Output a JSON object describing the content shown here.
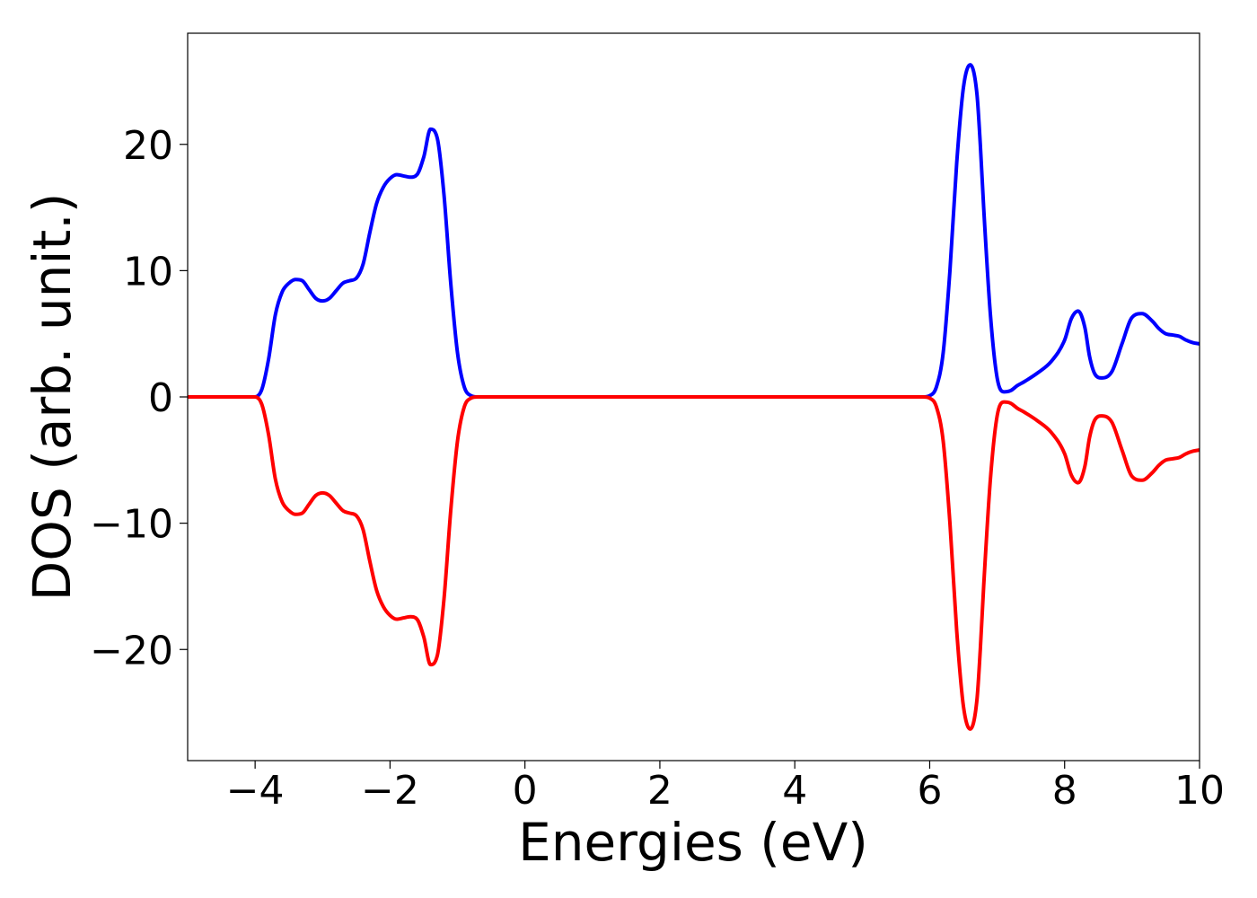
{
  "chart_data": {
    "type": "line",
    "xlabel": "Energies (eV)",
    "ylabel": "DOS (arb. unit.)",
    "xlim": [
      -5,
      10
    ],
    "ylim": [
      -28.8,
      28.8
    ],
    "xticks": [
      -4,
      -2,
      0,
      2,
      4,
      6,
      8,
      10
    ],
    "xtick_labels": [
      "−4",
      "−2",
      "0",
      "2",
      "4",
      "6",
      "8",
      "10"
    ],
    "yticks": [
      -20,
      -10,
      0,
      10,
      20
    ],
    "ytick_labels": [
      "−20",
      "−10",
      "0",
      "10",
      "20"
    ],
    "grid": false,
    "legend": "none",
    "series": [
      {
        "color": "#0000ff",
        "x": [
          -5.0,
          -4.0,
          -3.9,
          -3.8,
          -3.7,
          -3.6,
          -3.5,
          -3.4,
          -3.3,
          -3.2,
          -3.1,
          -3.0,
          -2.9,
          -2.8,
          -2.7,
          -2.6,
          -2.5,
          -2.4,
          -2.3,
          -2.2,
          -2.1,
          -2.0,
          -1.9,
          -1.8,
          -1.7,
          -1.6,
          -1.5,
          -1.4,
          -1.3,
          -1.2,
          -1.1,
          -1.0,
          -0.9,
          -0.8,
          -0.7,
          -0.6,
          -0.5,
          0.0,
          2.0,
          4.0,
          5.9,
          6.0,
          6.1,
          6.2,
          6.3,
          6.4,
          6.5,
          6.6,
          6.7,
          6.75,
          6.8,
          6.9,
          7.0,
          7.1,
          7.2,
          7.3,
          7.4,
          7.6,
          7.8,
          8.0,
          8.1,
          8.2,
          8.3,
          8.37,
          8.45,
          8.55,
          8.7,
          8.85,
          9.0,
          9.15,
          9.3,
          9.4,
          9.5,
          9.6,
          9.7,
          9.8,
          9.9,
          10.0
        ],
        "y": [
          0,
          0,
          0.6,
          3.0,
          6.5,
          8.3,
          9.0,
          9.3,
          9.2,
          8.5,
          7.8,
          7.6,
          7.8,
          8.4,
          9.0,
          9.2,
          9.4,
          10.5,
          13.0,
          15.3,
          16.6,
          17.3,
          17.6,
          17.5,
          17.4,
          17.6,
          19.0,
          21.2,
          20.5,
          16.0,
          9.0,
          3.5,
          0.8,
          0.1,
          0,
          0,
          0,
          0,
          0,
          0,
          0,
          0.1,
          0.8,
          3.5,
          10.0,
          18.5,
          24.5,
          26.3,
          24.0,
          20.0,
          15.0,
          6.5,
          1.5,
          0.4,
          0.5,
          0.9,
          1.2,
          1.9,
          2.8,
          4.5,
          6.2,
          6.8,
          5.5,
          3.2,
          1.8,
          1.5,
          2.0,
          4.2,
          6.3,
          6.6,
          6.0,
          5.4,
          5.0,
          4.9,
          4.8,
          4.5,
          4.3,
          4.2
        ]
      },
      {
        "color": "#ff0000",
        "x": [
          -5.0,
          -4.0,
          -3.9,
          -3.8,
          -3.7,
          -3.6,
          -3.5,
          -3.4,
          -3.3,
          -3.2,
          -3.1,
          -3.0,
          -2.9,
          -2.8,
          -2.7,
          -2.6,
          -2.5,
          -2.4,
          -2.3,
          -2.2,
          -2.1,
          -2.0,
          -1.9,
          -1.8,
          -1.7,
          -1.6,
          -1.5,
          -1.4,
          -1.3,
          -1.2,
          -1.1,
          -1.0,
          -0.9,
          -0.8,
          -0.7,
          -0.6,
          -0.5,
          0.0,
          2.0,
          4.0,
          5.9,
          6.0,
          6.1,
          6.2,
          6.3,
          6.4,
          6.5,
          6.6,
          6.7,
          6.75,
          6.8,
          6.9,
          7.0,
          7.1,
          7.2,
          7.3,
          7.4,
          7.6,
          7.8,
          8.0,
          8.1,
          8.2,
          8.3,
          8.37,
          8.45,
          8.55,
          8.7,
          8.85,
          9.0,
          9.15,
          9.3,
          9.4,
          9.5,
          9.6,
          9.7,
          9.8,
          9.9,
          10.0
        ],
        "y": [
          0,
          0,
          -0.6,
          -3.0,
          -6.5,
          -8.3,
          -9.0,
          -9.3,
          -9.2,
          -8.5,
          -7.8,
          -7.6,
          -7.8,
          -8.4,
          -9.0,
          -9.2,
          -9.4,
          -10.5,
          -13.0,
          -15.3,
          -16.6,
          -17.3,
          -17.6,
          -17.5,
          -17.4,
          -17.6,
          -19.0,
          -21.2,
          -20.5,
          -16.0,
          -9.0,
          -3.5,
          -0.8,
          -0.1,
          0,
          0,
          0,
          0,
          0,
          0,
          0,
          -0.1,
          -0.8,
          -3.5,
          -10.0,
          -18.5,
          -24.5,
          -26.3,
          -24.0,
          -20.0,
          -15.0,
          -6.5,
          -1.5,
          -0.4,
          -0.5,
          -0.9,
          -1.2,
          -1.9,
          -2.8,
          -4.5,
          -6.2,
          -6.8,
          -5.5,
          -3.2,
          -1.8,
          -1.5,
          -2.0,
          -4.2,
          -6.3,
          -6.6,
          -6.0,
          -5.4,
          -5.0,
          -4.9,
          -4.8,
          -4.5,
          -4.3,
          -4.2
        ]
      }
    ]
  }
}
